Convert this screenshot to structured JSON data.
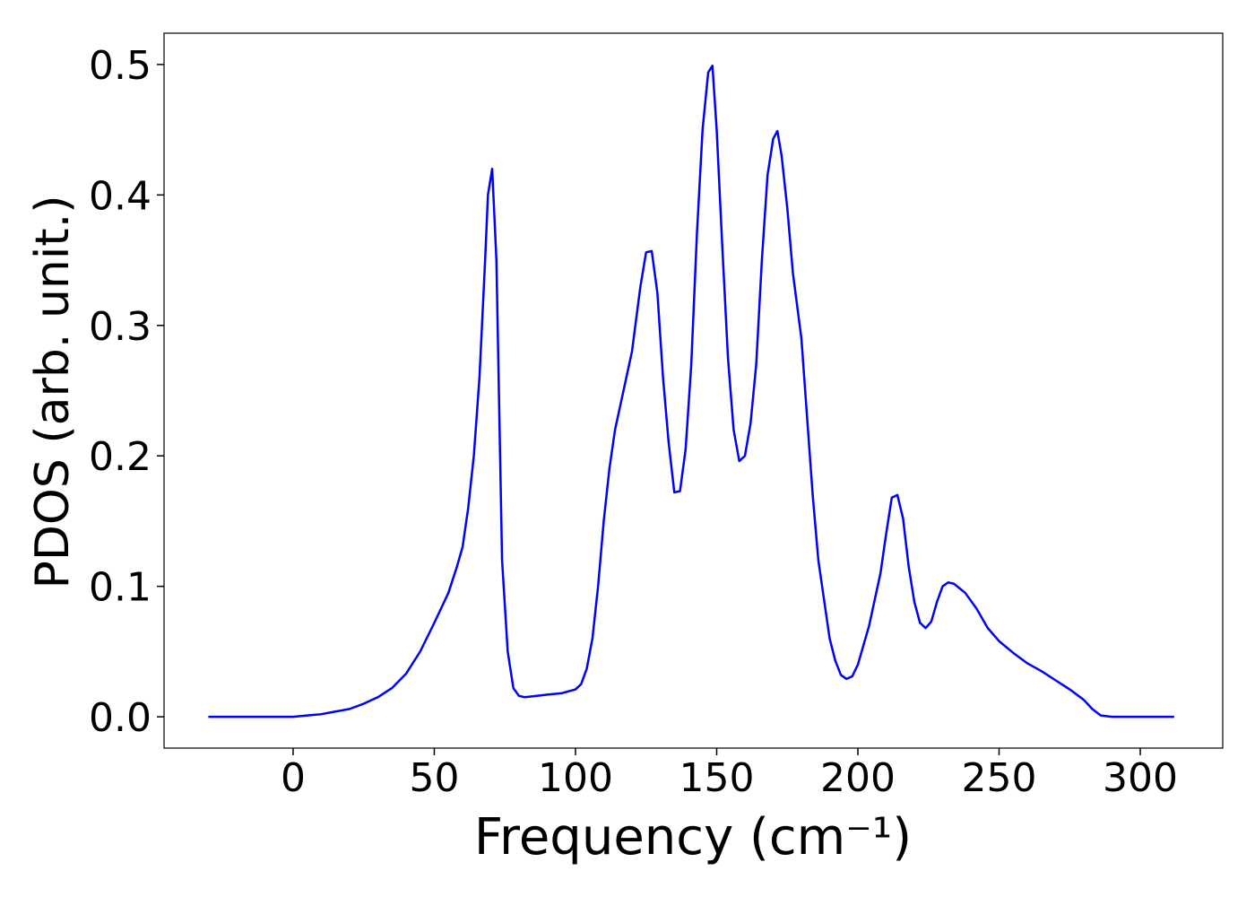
{
  "chart_data": {
    "type": "line",
    "xlabel": "Frequency (cm⁻¹)",
    "ylabel": "PDOS (arb. unit.)",
    "xlim": [
      -45.7,
      329.2
    ],
    "xticks": [
      0,
      50,
      100,
      150,
      200,
      250,
      300
    ],
    "ylim": [
      -0.024,
      0.524
    ],
    "yticks": [
      {
        "value": 0,
        "label": "0.0"
      },
      0.1,
      0.2,
      0.3,
      0.4,
      0.5
    ],
    "x": [
      -30,
      -20,
      -10,
      0,
      5,
      10,
      15,
      20,
      25,
      30,
      35,
      40,
      45,
      50,
      55,
      58,
      60,
      62,
      64,
      66,
      68,
      69,
      70.5,
      72,
      74,
      76,
      78,
      80,
      82,
      86,
      90,
      95,
      100,
      102,
      104,
      106,
      108,
      110,
      112,
      114,
      117,
      120,
      123,
      125,
      127,
      129,
      131,
      133,
      135,
      137,
      139,
      141,
      143,
      145,
      147,
      148.5,
      150,
      152,
      154,
      156,
      158,
      160,
      162,
      164,
      166,
      168,
      170,
      171.5,
      173,
      175,
      177,
      180,
      182,
      184,
      186,
      188,
      190,
      192,
      194,
      196,
      198,
      200,
      202,
      204,
      206,
      208,
      210,
      212,
      214,
      216,
      218,
      220,
      222,
      224,
      226,
      228,
      230,
      232,
      234,
      238,
      242,
      246,
      250,
      255,
      260,
      265,
      270,
      275,
      280,
      283,
      286,
      290,
      300,
      312
    ],
    "series": [
      {
        "name": "PDOS",
        "color": "#0000ff",
        "values": [
          0,
          0,
          0,
          0,
          0.001,
          0.002,
          0.004,
          0.006,
          0.01,
          0.015,
          0.022,
          0.033,
          0.05,
          0.072,
          0.095,
          0.115,
          0.13,
          0.16,
          0.2,
          0.26,
          0.35,
          0.4,
          0.42,
          0.35,
          0.12,
          0.05,
          0.022,
          0.016,
          0.015,
          0.016,
          0.017,
          0.018,
          0.021,
          0.025,
          0.037,
          0.06,
          0.1,
          0.15,
          0.19,
          0.22,
          0.25,
          0.28,
          0.33,
          0.356,
          0.357,
          0.325,
          0.26,
          0.21,
          0.172,
          0.173,
          0.205,
          0.27,
          0.37,
          0.45,
          0.494,
          0.499,
          0.45,
          0.36,
          0.275,
          0.22,
          0.196,
          0.2,
          0.225,
          0.27,
          0.35,
          0.415,
          0.443,
          0.449,
          0.43,
          0.39,
          0.34,
          0.29,
          0.23,
          0.17,
          0.12,
          0.09,
          0.06,
          0.043,
          0.032,
          0.029,
          0.031,
          0.04,
          0.055,
          0.07,
          0.09,
          0.11,
          0.14,
          0.168,
          0.17,
          0.152,
          0.115,
          0.088,
          0.072,
          0.068,
          0.073,
          0.088,
          0.1,
          0.103,
          0.102,
          0.095,
          0.083,
          0.068,
          0.058,
          0.049,
          0.041,
          0.035,
          0.028,
          0.021,
          0.013,
          0.006,
          0.001,
          0,
          0,
          0
        ]
      }
    ]
  }
}
